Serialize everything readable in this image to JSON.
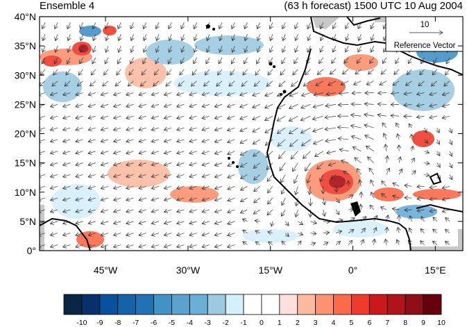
{
  "header": {
    "left_title": "Ensemble 4",
    "right_title": "(63 h forecast) 1500 UTC 10 Aug 2004"
  },
  "map": {
    "y_labels": [
      "40°N",
      "35°N",
      "30°N",
      "25°N",
      "20°N",
      "15°N",
      "10°N",
      "5°N",
      "0°"
    ],
    "x_labels": [
      "45°W",
      "30°W",
      "15°W",
      "0°",
      "15°E"
    ],
    "lon_range": [
      -57,
      20
    ],
    "lat_range": [
      0,
      40
    ],
    "land_mask_color": "#c8c8c8"
  },
  "reference_vector": {
    "value": "10",
    "label": "Reference Vector"
  },
  "colorbar": {
    "labels": [
      "-10",
      "-9",
      "-8",
      "-7",
      "-6",
      "-5",
      "-4",
      "-3",
      "-2",
      "-1",
      "0",
      "1",
      "2",
      "3",
      "4",
      "5",
      "6",
      "7",
      "8",
      "9",
      "10"
    ],
    "colors": [
      "#0b2545",
      "#08306b",
      "#08519c",
      "#1562a8",
      "#2171b5",
      "#4292c6",
      "#5ca2cf",
      "#6baed6",
      "#9ecae1",
      "#d6f0fb",
      "#ffffff",
      "#ffffff",
      "#fde0dd",
      "#fcbba1",
      "#fc9272",
      "#fb6a4a",
      "#ef3b2c",
      "#cb181d",
      "#b1131b",
      "#8f0d16",
      "#67000d"
    ]
  }
}
